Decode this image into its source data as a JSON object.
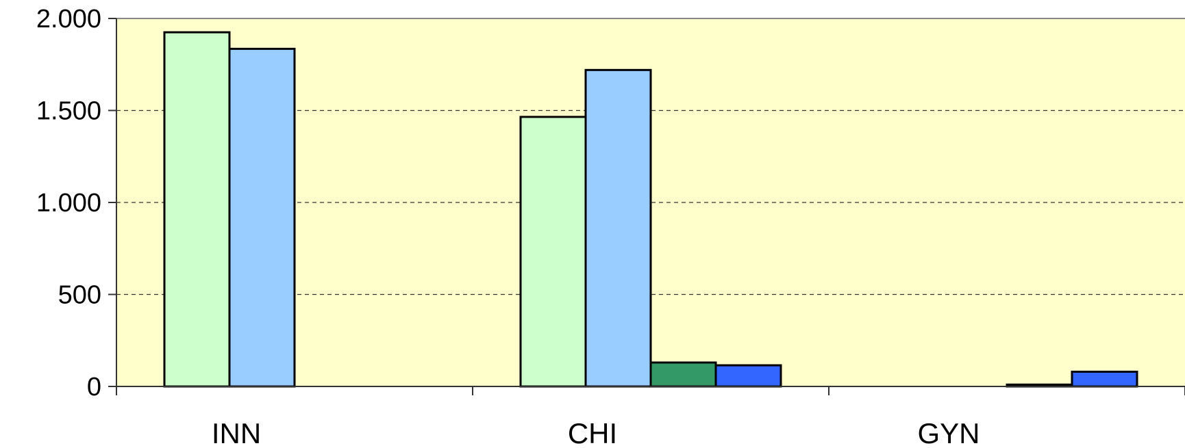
{
  "chart_data": {
    "type": "bar",
    "categories": [
      "INN",
      "CHI",
      "GYN"
    ],
    "series": [
      {
        "values": [
          1925,
          1465,
          0
        ],
        "color": "#ccffcc"
      },
      {
        "values": [
          1835,
          1720,
          0
        ],
        "color": "#99ccff"
      },
      {
        "values": [
          0,
          130,
          10
        ],
        "color": "#339966"
      },
      {
        "values": [
          0,
          115,
          80
        ],
        "color": "#3366ff"
      }
    ],
    "series_note_ignore": "",
    "ylim": [
      0,
      2000
    ],
    "yticks": [
      0,
      500,
      1000,
      1500,
      2000
    ],
    "ytick_labels": [
      "0",
      "500",
      "1.000",
      "1.500",
      "2.000"
    ],
    "grid": true,
    "plot_background": "#ffffcc",
    "legend": "none"
  }
}
